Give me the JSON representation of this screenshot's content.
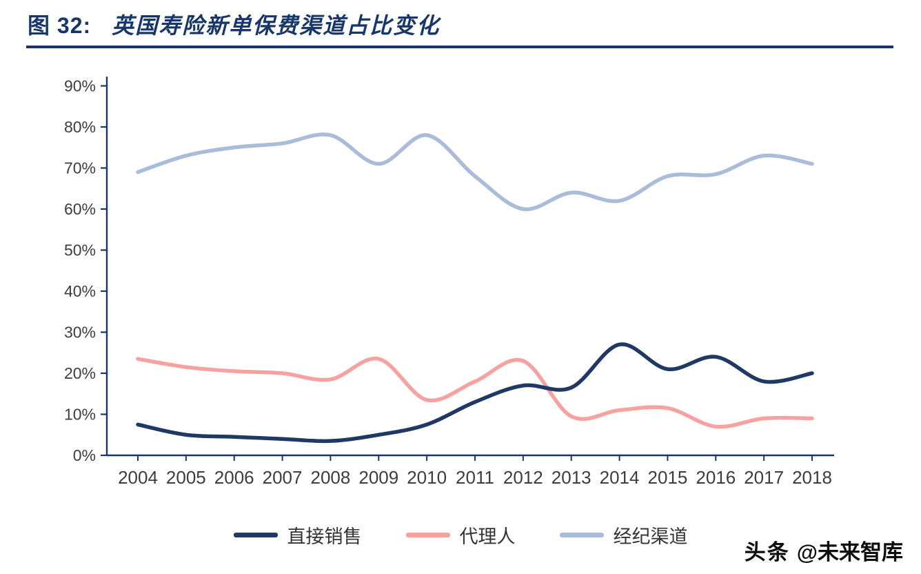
{
  "title": {
    "prefix": "图 32:",
    "text": "英国寿险新单保费渠道占比变化"
  },
  "watermark": {
    "logo": "头条",
    "handle": "@未来智库"
  },
  "chart_data": {
    "type": "line",
    "title": "英国寿险新单保费渠道占比变化",
    "categories": [
      "2004",
      "2005",
      "2006",
      "2007",
      "2008",
      "2009",
      "2010",
      "2011",
      "2012",
      "2013",
      "2014",
      "2015",
      "2016",
      "2017",
      "2018"
    ],
    "series": [
      {
        "name": "直接销售",
        "key": "direct-sales",
        "color": "#1f3864",
        "values": [
          7.5,
          5,
          4.5,
          4,
          3.5,
          5,
          7.5,
          13,
          17,
          16.5,
          27,
          21,
          24,
          18,
          20
        ]
      },
      {
        "name": "代理人",
        "key": "agents",
        "color": "#f7a1a1",
        "values": [
          23.5,
          21.5,
          20.5,
          20,
          18.5,
          23.5,
          13.5,
          18,
          23,
          9.5,
          11,
          11.5,
          7,
          9,
          9
        ]
      },
      {
        "name": "经纪渠道",
        "key": "broker-channel",
        "color": "#a9bcd9",
        "values": [
          69,
          73,
          75,
          76,
          78,
          71,
          78,
          68,
          60,
          64,
          62,
          68,
          68.5,
          73,
          71
        ]
      }
    ],
    "xlabel": "",
    "ylabel": "",
    "ylim": [
      0,
      90
    ],
    "y_ticks": [
      "0%",
      "10%",
      "20%",
      "30%",
      "40%",
      "50%",
      "60%",
      "70%",
      "80%",
      "90%"
    ],
    "grid": false,
    "legend_position": "bottom",
    "style": {
      "axis_color": "#17376b",
      "label_color": "#3d3d3d"
    }
  }
}
